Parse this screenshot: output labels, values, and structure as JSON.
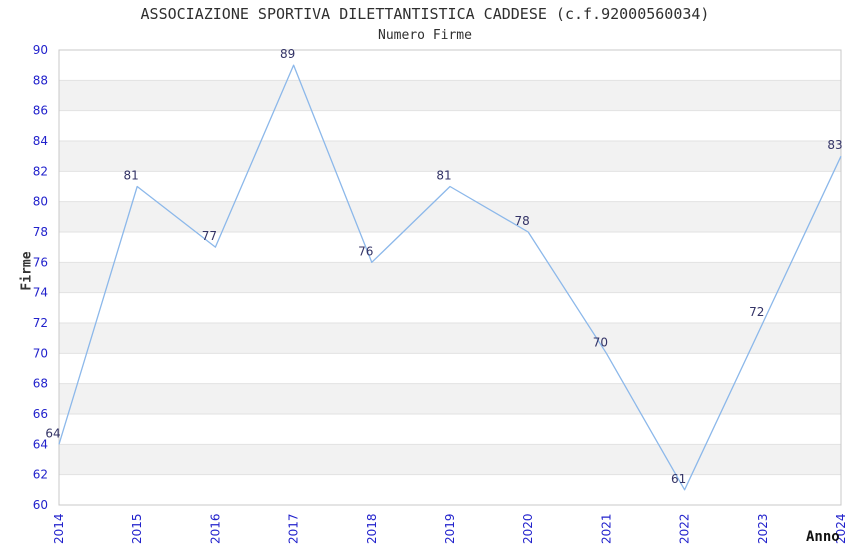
{
  "chart_data": {
    "type": "line",
    "title": "ASSOCIAZIONE SPORTIVA DILETTANTISTICA CADDESE (c.f.92000560034)",
    "subtitle": "Numero Firme",
    "xlabel": "Anno",
    "ylabel": "Firme",
    "categories": [
      "2014",
      "2015",
      "2016",
      "2017",
      "2018",
      "2019",
      "2020",
      "2021",
      "2022",
      "2023",
      "2024"
    ],
    "values": [
      64,
      81,
      77,
      89,
      76,
      81,
      78,
      70,
      61,
      72,
      83
    ],
    "ylim": [
      60,
      90
    ],
    "ytick_step": 2,
    "grid": "horizontal-on",
    "legend": "none",
    "alternating_bands": "on",
    "colors": {
      "line": "#8CB8EA",
      "band": "#F2F2F2",
      "gridline": "#E2E2E2",
      "plot_border": "#C8C8C8",
      "tick_label": "#2222CC",
      "value_label": "#333366",
      "title_text": "#2F2F2F",
      "background": "#FFFFFF"
    }
  }
}
